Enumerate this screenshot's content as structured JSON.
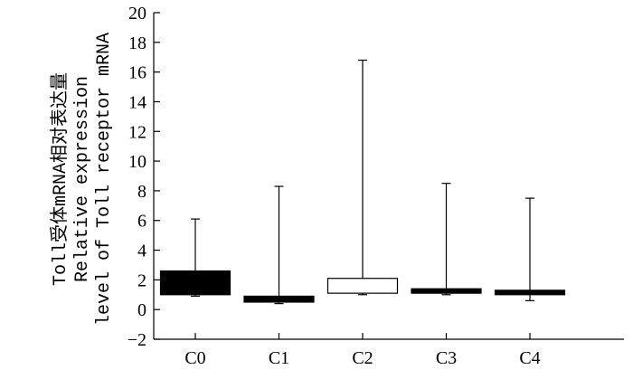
{
  "chart_data": {
    "type": "box",
    "ylabel_lines": [
      "Toll受体mRNA相对表达量",
      "Relative expression",
      "level of Toll receptor mRNA"
    ],
    "xlabel": "",
    "ylim": [
      -2,
      20
    ],
    "yticks": [
      -2,
      0,
      2,
      4,
      6,
      8,
      10,
      12,
      14,
      16,
      18,
      20
    ],
    "categories": [
      "C0",
      "C1",
      "C2",
      "C3",
      "C4"
    ],
    "boxes": [
      {
        "category": "C0",
        "whisker_low": 0.9,
        "q1": 1.0,
        "q3": 2.6,
        "whisker_high": 6.1,
        "fill": "#000000"
      },
      {
        "category": "C1",
        "whisker_low": 0.4,
        "q1": 0.5,
        "q3": 0.9,
        "whisker_high": 8.3,
        "fill": "#000000"
      },
      {
        "category": "C2",
        "whisker_low": 1.0,
        "q1": 1.1,
        "q3": 2.1,
        "whisker_high": 16.8,
        "fill": "#ffffff"
      },
      {
        "category": "C3",
        "whisker_low": 1.0,
        "q1": 1.1,
        "q3": 1.4,
        "whisker_high": 8.5,
        "fill": "#000000"
      },
      {
        "category": "C4",
        "whisker_low": 0.6,
        "q1": 1.0,
        "q3": 1.3,
        "whisker_high": 7.5,
        "fill": "#000000"
      }
    ]
  }
}
